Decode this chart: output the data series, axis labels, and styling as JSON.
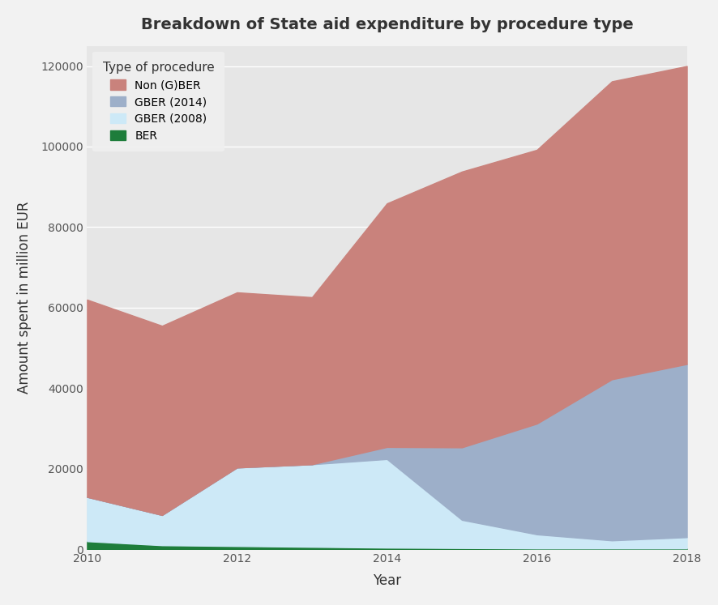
{
  "title": "Breakdown of State aid expenditure by procedure type",
  "xlabel": "Year",
  "ylabel": "Amount spent in million EUR",
  "years": [
    2010,
    2011,
    2012,
    2013,
    2014,
    2015,
    2016,
    2017,
    2018
  ],
  "BER": [
    2000,
    1000,
    800,
    600,
    400,
    300,
    200,
    200,
    200
  ],
  "GBER_2008": [
    11000,
    7500,
    19500,
    20500,
    22000,
    7000,
    3500,
    2000,
    2800
  ],
  "GBER_2014": [
    0,
    0,
    0,
    0,
    3000,
    18000,
    27500,
    40000,
    43000
  ],
  "Non_GBER": [
    49000,
    47000,
    43500,
    41500,
    60500,
    68500,
    68000,
    74000,
    74000
  ],
  "colors": {
    "BER": "#1e7d3b",
    "GBER_2008": "#cde9f7",
    "GBER_2014": "#9dafc9",
    "Non_GBER": "#c9827c"
  },
  "ylim": [
    0,
    125000
  ],
  "yticks": [
    0,
    20000,
    40000,
    60000,
    80000,
    100000,
    120000
  ],
  "background_color": "#e8e8e8",
  "plot_background": "#e6e6e6",
  "legend_title": "Type of procedure",
  "legend_labels": [
    "Non (G)BER",
    "GBER (2014)",
    "GBER (2008)",
    "BER"
  ],
  "fig_bg": "#f2f2f2"
}
